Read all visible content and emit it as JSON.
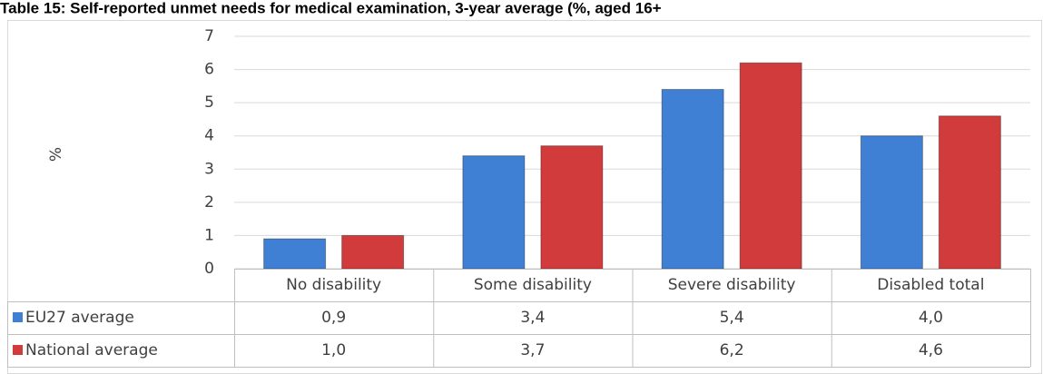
{
  "chart_data": {
    "type": "bar",
    "title": "Table 15: Self-reported unmet needs for medical examination, 3-year average (%, aged 16+",
    "y_label": "%",
    "categories": [
      "No disability",
      "Some disability",
      "Severe disability",
      "Disabled total"
    ],
    "series": [
      {
        "name": "EU27 average",
        "color": "#3f7fd4",
        "values": [
          0.9,
          3.4,
          5.4,
          4.0
        ],
        "value_labels": [
          "0,9",
          "3,4",
          "5,4",
          "4,0"
        ]
      },
      {
        "name": "National average",
        "color": "#d13b3b",
        "values": [
          1.0,
          3.7,
          6.2,
          4.6
        ],
        "value_labels": [
          "1,0",
          "3,7",
          "6,2",
          "4,6"
        ]
      }
    ],
    "ylim": [
      0,
      7
    ],
    "yticks": [
      0,
      1,
      2,
      3,
      4,
      5,
      6,
      7
    ],
    "grid": true,
    "data_table": true
  }
}
